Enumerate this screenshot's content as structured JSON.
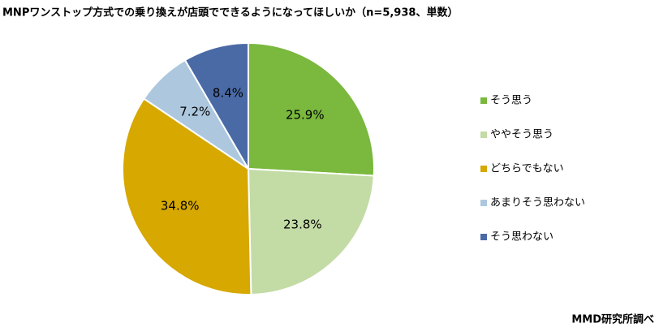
{
  "chart_data": {
    "type": "pie",
    "title": "MNPワンストップ方式での乗り換えが店頭でできるようになってほしいか（n=5,938、単数）",
    "categories": [
      "そう思う",
      "ややそう思う",
      "どちらでもない",
      "あまりそう思わない",
      "そう思わない"
    ],
    "values": [
      25.9,
      23.8,
      34.8,
      7.2,
      8.4
    ],
    "value_labels": [
      "25.9%",
      "23.8%",
      "34.8%",
      "7.2%",
      "8.4%"
    ],
    "colors": [
      "#7ab83e",
      "#c3dba5",
      "#d6a800",
      "#adc8de",
      "#4a6aa6"
    ],
    "legend": "right",
    "source": "MMD研究所調べ"
  }
}
